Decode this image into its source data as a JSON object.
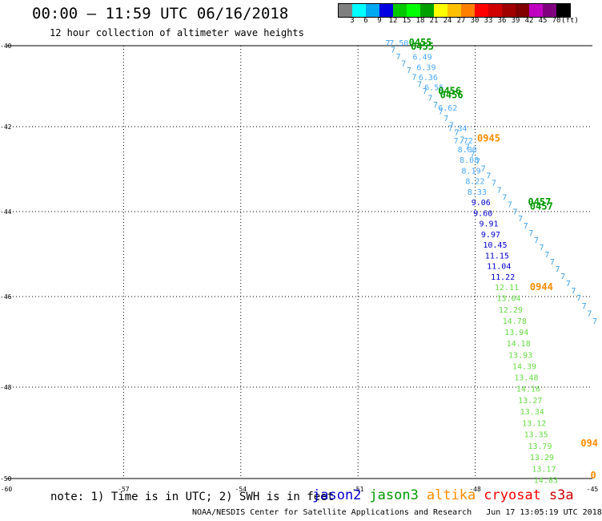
{
  "header": {
    "title": "00:00 – 11:59 UTC 06/16/2018",
    "subtitle": "12 hour collection of altimeter wave heights"
  },
  "legend": {
    "swatches": [
      "#808080",
      "#00ffff",
      "#00a8f0",
      "#0000e0",
      "#00c800",
      "#00ff00",
      "#00a000",
      "#ffff00",
      "#ffc000",
      "#ff8000",
      "#ff0000",
      "#d00000",
      "#a00000",
      "#800000",
      "#c000c0",
      "#800080",
      "#000000"
    ],
    "labels": [
      "3",
      "6",
      "9",
      "12",
      "15",
      "18",
      "21",
      "24",
      "27",
      "30",
      "33",
      "36",
      "39",
      "42",
      "45",
      "70",
      "(ft)"
    ]
  },
  "note": "note: 1) Time is in UTC; 2) SWH is in feet",
  "satellites": [
    {
      "name": "jason2",
      "color": "#0000cc"
    },
    {
      "name": "jason3",
      "color": "#009900"
    },
    {
      "name": "altika",
      "color": "#ff8c00"
    },
    {
      "name": "cryosat",
      "color": "#ff0000"
    },
    {
      "name": "s3a",
      "color": "#cc0000"
    }
  ],
  "footer": "NOAA/NESDIS Center for Satellite Applications and Research   Jun 17 13:05:19 UTC 2018",
  "chart_data": {
    "type": "scatter",
    "title": "00:00 – 11:59 UTC 06/16/2018",
    "subtitle": "12 hour collection of altimeter wave heights",
    "xlabel": "",
    "ylabel": "",
    "xlim": [
      -60,
      -45
    ],
    "ylim": [
      -50,
      -40
    ],
    "x_ticks": [
      -60,
      -57,
      -54,
      -51,
      -48,
      -45
    ],
    "y_ticks": [
      -40,
      -42,
      -44,
      -46,
      -48,
      -50
    ],
    "grid": true,
    "series": [
      {
        "name": "jason3",
        "color": "#4aa8ff",
        "points": [
          {
            "lon": -50.2,
            "lat": -40.0,
            "label": "7.50"
          },
          {
            "lon": -49.6,
            "lat": -40.35,
            "label": "6.49"
          },
          {
            "lon": -49.5,
            "lat": -40.6,
            "label": "6.39"
          },
          {
            "lon": -49.45,
            "lat": -40.85,
            "label": "6.36"
          },
          {
            "lon": -49.3,
            "lat": -41.1,
            "label": "6.55"
          },
          {
            "lon": -48.95,
            "lat": -41.6,
            "label": "6.62"
          },
          {
            "lon": -48.7,
            "lat": -42.1,
            "label": "7.34"
          },
          {
            "lon": -48.55,
            "lat": -42.4,
            "label": "7.72"
          },
          {
            "lon": -48.45,
            "lat": -42.6,
            "label": "8.00"
          },
          {
            "lon": -48.4,
            "lat": -42.85,
            "label": "8.08"
          },
          {
            "lon": -48.35,
            "lat": -43.1,
            "label": "8.19"
          },
          {
            "lon": -48.25,
            "lat": -43.35,
            "label": "8.22"
          },
          {
            "lon": -48.2,
            "lat": -43.6,
            "label": "8.33"
          }
        ]
      },
      {
        "name": "jason2",
        "color": "#0000cc",
        "points": [
          {
            "lon": -48.1,
            "lat": -43.85,
            "label": "9.06"
          },
          {
            "lon": -48.05,
            "lat": -44.1,
            "label": "9.60"
          },
          {
            "lon": -47.9,
            "lat": -44.35,
            "label": "9.91"
          },
          {
            "lon": -47.85,
            "lat": -44.6,
            "label": "9.97"
          },
          {
            "lon": -47.8,
            "lat": -44.85,
            "label": "10.45"
          },
          {
            "lon": -47.75,
            "lat": -45.1,
            "label": "11.15"
          },
          {
            "lon": -47.7,
            "lat": -45.35,
            "label": "11.04"
          },
          {
            "lon": -47.6,
            "lat": -45.6,
            "label": "11.22"
          }
        ]
      },
      {
        "name": "jason3",
        "color": "#66dd44",
        "points": [
          {
            "lon": -47.5,
            "lat": -45.85,
            "label": "12.11"
          },
          {
            "lon": -47.45,
            "lat": -46.1,
            "label": "13.04"
          },
          {
            "lon": -47.4,
            "lat": -46.35,
            "label": "12.29"
          },
          {
            "lon": -47.3,
            "lat": -46.6,
            "label": "14.78"
          },
          {
            "lon": -47.25,
            "lat": -46.85,
            "label": "13.94"
          },
          {
            "lon": -47.2,
            "lat": -47.1,
            "label": "14.18"
          },
          {
            "lon": -47.15,
            "lat": -47.35,
            "label": "13.93"
          },
          {
            "lon": -47.05,
            "lat": -47.6,
            "label": "14.39"
          },
          {
            "lon": -47.0,
            "lat": -47.85,
            "label": "13.48"
          },
          {
            "lon": -46.95,
            "lat": -48.1,
            "label": "14.16"
          },
          {
            "lon": -46.9,
            "lat": -48.35,
            "label": "13.27"
          },
          {
            "lon": -46.85,
            "lat": -48.6,
            "label": "13.34"
          },
          {
            "lon": -46.8,
            "lat": -48.85,
            "label": "13.12"
          },
          {
            "lon": -46.75,
            "lat": -49.1,
            "label": "13.35"
          },
          {
            "lon": -46.65,
            "lat": -49.35,
            "label": "13.79"
          },
          {
            "lon": -46.6,
            "lat": -49.6,
            "label": "13.29"
          },
          {
            "lon": -46.55,
            "lat": -49.85,
            "label": "13.17"
          },
          {
            "lon": -46.5,
            "lat": -50.1,
            "label": "14.83"
          }
        ]
      }
    ],
    "time_labels": [
      {
        "text": "0455",
        "lon": -49.7,
        "lat": -40.0,
        "color": "#009900"
      },
      {
        "text": "0455",
        "lon": -49.65,
        "lat": -40.1,
        "color": "#009900"
      },
      {
        "text": "0456",
        "lon": -48.95,
        "lat": -41.2,
        "color": "#009900"
      },
      {
        "text": "0456",
        "lon": -48.9,
        "lat": -41.3,
        "color": "#009900"
      },
      {
        "text": "0945",
        "lon": -47.95,
        "lat": -42.35,
        "color": "#ff8c00"
      },
      {
        "text": "0457",
        "lon": -46.65,
        "lat": -43.85,
        "color": "#009900"
      },
      {
        "text": "0457",
        "lon": -46.6,
        "lat": -43.95,
        "color": "#009900"
      },
      {
        "text": "0944",
        "lon": -46.6,
        "lat": -45.85,
        "color": "#ff8c00"
      },
      {
        "text": "094",
        "lon": -45.3,
        "lat": -49.3,
        "color": "#ff8c00"
      },
      {
        "text": "0",
        "lon": -45.05,
        "lat": -50.0,
        "color": "#ff8c00"
      }
    ]
  }
}
